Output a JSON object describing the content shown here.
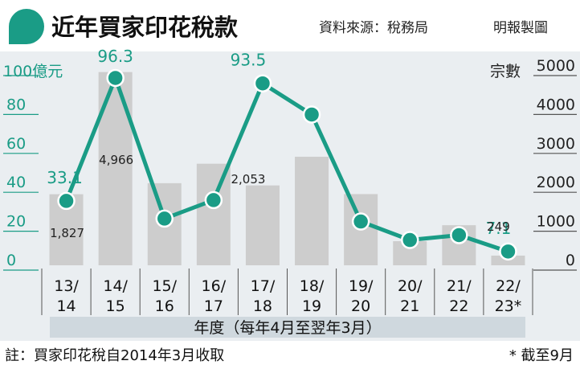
{
  "header": {
    "title": "近年買家印花稅款",
    "source": "資料來源：稅務局",
    "credit": "明報製圖"
  },
  "footer": {
    "note": "註：買家印花稅自2014年3月收取",
    "asterisk_note": "* 截至9月"
  },
  "colors": {
    "line": "#1a9c86",
    "bar": "#cdcdcd",
    "background": "#eaeef1"
  },
  "chart_data": {
    "type": "bar+line",
    "categories": [
      "13/14",
      "14/15",
      "15/16",
      "16/17",
      "17/18",
      "18/19",
      "19/20",
      "20/21",
      "21/22",
      "22/23"
    ],
    "category_lines": [
      [
        "13/",
        "14"
      ],
      [
        "14/",
        "15"
      ],
      [
        "15/",
        "16"
      ],
      [
        "16/",
        "17"
      ],
      [
        "17/",
        "18"
      ],
      [
        "18/",
        "19"
      ],
      [
        "19/",
        "20"
      ],
      [
        "20/",
        "21"
      ],
      [
        "21/",
        "22"
      ],
      [
        "22/",
        "23*"
      ]
    ],
    "xlabel": "年度（每年4月至翌年3月）",
    "series": [
      {
        "kind": "line",
        "axis": "left",
        "values": [
          33.1,
          96.3,
          24,
          33.5,
          93.5,
          77.5,
          22.5,
          13,
          15.5,
          7.1
        ],
        "labels": [
          "33.1",
          "96.3",
          "",
          "",
          "93.5",
          "",
          "",
          "",
          "",
          "7.1"
        ]
      },
      {
        "kind": "bar",
        "axis": "right",
        "values": [
          1827,
          4966,
          2110,
          2610,
          2053,
          2790,
          1830,
          620,
          1030,
          249
        ],
        "labels": [
          "1,827",
          "4,966",
          "",
          "",
          "2,053",
          "",
          "",
          "",
          "",
          "249"
        ]
      }
    ],
    "left_axis": {
      "unit": "億元",
      "ticks": [
        "100",
        "80",
        "60",
        "40",
        "20",
        "0"
      ],
      "ylim": [
        0,
        100
      ]
    },
    "right_axis": {
      "unit": "宗數",
      "ticks": [
        "5000",
        "4000",
        "3000",
        "2000",
        "1000",
        "0"
      ],
      "ylim": [
        0,
        5000
      ]
    },
    "grid": true
  }
}
